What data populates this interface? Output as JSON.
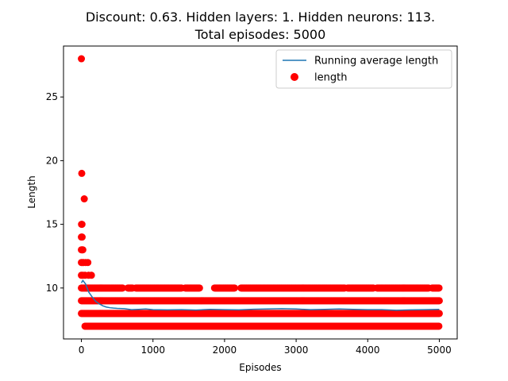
{
  "chart_data": {
    "type": "scatter",
    "title_line1": "Discount: 0.63. Hidden layers: 1. Hidden neurons: 113.",
    "title_line2": "Total episodes: 5000",
    "xlabel": "Episodes",
    "ylabel": "Length",
    "xlim": [
      -250,
      5250
    ],
    "ylim": [
      6.0,
      29.0
    ],
    "xticks": [
      0,
      1000,
      2000,
      3000,
      4000,
      5000
    ],
    "yticks": [
      10,
      15,
      20,
      25
    ],
    "grid": false,
    "legend_position": "top-right",
    "colors": {
      "scatter": "#ff0000",
      "line": "#1f77b4"
    },
    "legend": [
      {
        "label": "Running average length",
        "kind": "line"
      },
      {
        "label": "length",
        "kind": "scatter"
      }
    ],
    "series": [
      {
        "name": "length",
        "kind": "scatter",
        "points": [
          [
            0,
            28
          ],
          [
            5,
            19
          ],
          [
            40,
            17
          ],
          [
            2,
            15
          ],
          [
            8,
            15
          ],
          [
            0,
            14
          ],
          [
            10,
            14
          ],
          [
            0,
            13
          ],
          [
            12,
            13
          ],
          [
            20,
            13
          ],
          [
            0,
            12
          ],
          [
            15,
            12
          ],
          [
            30,
            12
          ],
          [
            60,
            12
          ],
          [
            90,
            12
          ],
          [
            0,
            11
          ],
          [
            20,
            11
          ],
          [
            50,
            11
          ],
          [
            100,
            11
          ],
          [
            140,
            11
          ]
        ],
        "bands": [
          {
            "y": 10,
            "ranges": [
              [
                0,
                580
              ],
              [
                650,
                720
              ],
              [
                760,
                1400
              ],
              [
                1450,
                1650
              ],
              [
                1860,
                2140
              ],
              [
                2230,
                3680
              ],
              [
                3720,
                4080
              ],
              [
                4130,
                4850
              ],
              [
                4900,
                5000
              ]
            ]
          },
          {
            "y": 9,
            "ranges": [
              [
                0,
                5000
              ]
            ]
          },
          {
            "y": 8,
            "ranges": [
              [
                0,
                5000
              ]
            ]
          },
          {
            "y": 7,
            "ranges": [
              [
                50,
                5000
              ]
            ]
          }
        ]
      },
      {
        "name": "Running average length",
        "kind": "line",
        "x": [
          0,
          20,
          60,
          100,
          150,
          200,
          250,
          300,
          350,
          400,
          450,
          500,
          600,
          700,
          800,
          900,
          1000,
          1200,
          1400,
          1600,
          1800,
          2000,
          2200,
          2400,
          2600,
          2800,
          3000,
          3200,
          3400,
          3600,
          3800,
          4000,
          4200,
          4400,
          4600,
          4800,
          5000
        ],
        "y": [
          10.4,
          10.6,
          10.3,
          9.7,
          9.3,
          8.95,
          8.75,
          8.6,
          8.5,
          8.45,
          8.42,
          8.4,
          8.38,
          8.3,
          8.32,
          8.35,
          8.3,
          8.28,
          8.3,
          8.27,
          8.32,
          8.3,
          8.28,
          8.33,
          8.35,
          8.38,
          8.35,
          8.3,
          8.32,
          8.35,
          8.32,
          8.3,
          8.3,
          8.25,
          8.28,
          8.3,
          8.32
        ]
      }
    ]
  }
}
